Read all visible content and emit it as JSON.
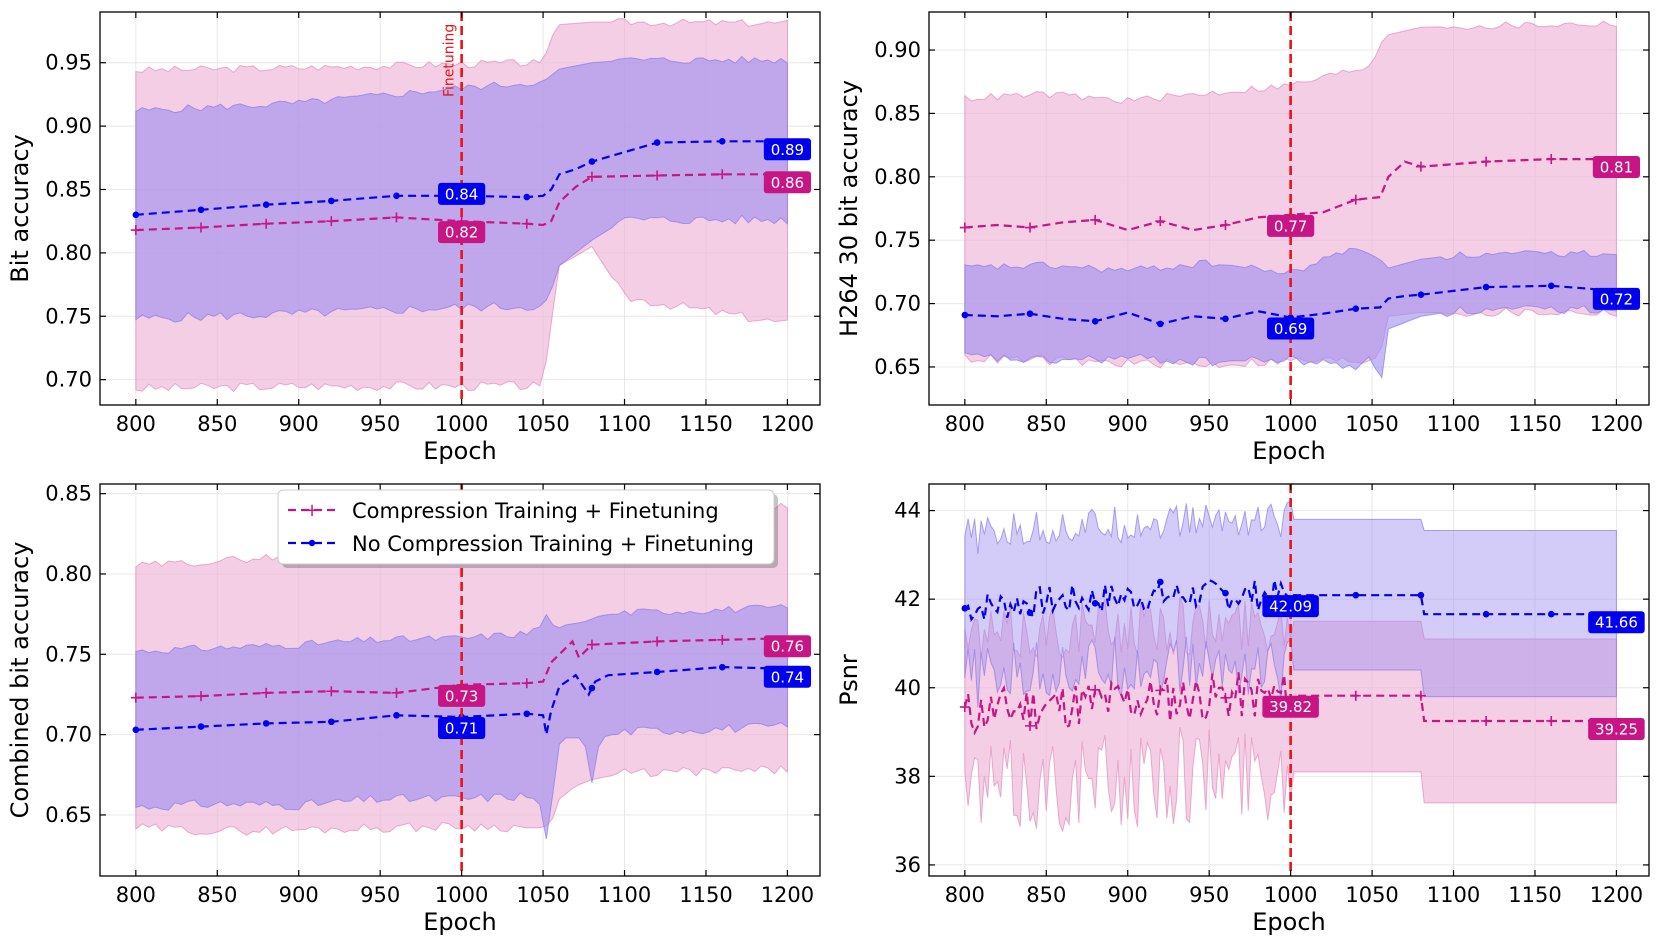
{
  "colors": {
    "compression": "#c71585",
    "nocompression": "#0000ee",
    "compression_fill": "#eeb4d6",
    "nocompression_fill": "#9f8ff0",
    "vline": "#ee1111"
  },
  "legend": {
    "entries": [
      "Compression Training + Finetuning",
      "No Compression Training + Finetuning"
    ]
  },
  "chart_data": [
    {
      "type": "line",
      "xlabel": "Epoch",
      "ylabel": "Bit accuracy",
      "xlim": [
        778,
        1220
      ],
      "ylim": [
        0.68,
        0.99
      ],
      "xticks": [
        800,
        850,
        900,
        950,
        1000,
        1050,
        1100,
        1150,
        1200
      ],
      "yticks": [
        0.7,
        0.75,
        0.8,
        0.85,
        0.9,
        0.95
      ],
      "ytick_labels": [
        "0.70",
        "0.75",
        "0.80",
        "0.85",
        "0.90",
        "0.95"
      ],
      "vline": {
        "x": 1000,
        "label": "Finetuning"
      },
      "series": [
        {
          "name": "Compression Training + Finetuning",
          "style": "comp",
          "x": [
            800,
            840,
            880,
            920,
            960,
            1000,
            1040,
            1050,
            1055,
            1060,
            1070,
            1080,
            1120,
            1160,
            1200
          ],
          "y": [
            0.818,
            0.82,
            0.823,
            0.825,
            0.828,
            0.825,
            0.823,
            0.822,
            0.825,
            0.84,
            0.852,
            0.86,
            0.861,
            0.862,
            0.862
          ],
          "markers_x": [
            800,
            840,
            880,
            920,
            960,
            1000,
            1040,
            1080,
            1120,
            1160
          ],
          "band_x": [
            800,
            900,
            1000,
            1050,
            1055,
            1060,
            1080,
            1100,
            1200
          ],
          "band_low": [
            0.693,
            0.695,
            0.695,
            0.695,
            0.745,
            0.79,
            0.805,
            0.765,
            0.744
          ],
          "band_high": [
            0.944,
            0.946,
            0.949,
            0.95,
            0.97,
            0.98,
            0.982,
            0.982,
            0.981
          ],
          "badge": "0.82",
          "badge_end": "0.86"
        },
        {
          "name": "No Compression Training + Finetuning",
          "style": "nocomp",
          "x": [
            800,
            840,
            880,
            920,
            960,
            1000,
            1040,
            1050,
            1055,
            1060,
            1070,
            1080,
            1120,
            1160,
            1200
          ],
          "y": [
            0.83,
            0.834,
            0.838,
            0.841,
            0.845,
            0.845,
            0.844,
            0.845,
            0.85,
            0.862,
            0.866,
            0.872,
            0.887,
            0.888,
            0.888
          ],
          "markers_x": [
            800,
            840,
            880,
            920,
            960,
            1000,
            1040,
            1080,
            1120,
            1160
          ],
          "band_x": [
            800,
            900,
            1000,
            1050,
            1055,
            1060,
            1080,
            1100,
            1200
          ],
          "band_low": [
            0.748,
            0.752,
            0.757,
            0.758,
            0.77,
            0.79,
            0.81,
            0.826,
            0.826
          ],
          "band_high": [
            0.912,
            0.918,
            0.93,
            0.935,
            0.94,
            0.945,
            0.95,
            0.952,
            0.952
          ],
          "badge": "0.84",
          "badge_end": "0.89"
        }
      ]
    },
    {
      "type": "line",
      "xlabel": "Epoch",
      "ylabel": "H264 30 bit accuracy",
      "xlim": [
        778,
        1220
      ],
      "ylim": [
        0.62,
        0.93
      ],
      "xticks": [
        800,
        850,
        900,
        950,
        1000,
        1050,
        1100,
        1150,
        1200
      ],
      "yticks": [
        0.65,
        0.7,
        0.75,
        0.8,
        0.85,
        0.9
      ],
      "ytick_labels": [
        "0.65",
        "0.70",
        "0.75",
        "0.80",
        "0.85",
        "0.90"
      ],
      "vline": {
        "x": 1000
      },
      "series": [
        {
          "name": "Compression Training + Finetuning",
          "style": "comp",
          "x": [
            800,
            820,
            840,
            860,
            880,
            900,
            920,
            940,
            960,
            980,
            1000,
            1020,
            1040,
            1055,
            1060,
            1070,
            1080,
            1120,
            1160,
            1200
          ],
          "y": [
            0.76,
            0.762,
            0.76,
            0.764,
            0.766,
            0.758,
            0.765,
            0.758,
            0.762,
            0.768,
            0.77,
            0.772,
            0.782,
            0.784,
            0.8,
            0.812,
            0.808,
            0.812,
            0.814,
            0.814
          ],
          "markers_x": [
            800,
            840,
            880,
            920,
            960,
            1000,
            1040,
            1080,
            1120,
            1160
          ],
          "band_x": [
            800,
            850,
            900,
            950,
            1000,
            1050,
            1055,
            1060,
            1080,
            1200
          ],
          "band_low": [
            0.657,
            0.655,
            0.653,
            0.652,
            0.655,
            0.655,
            0.66,
            0.69,
            0.693,
            0.693
          ],
          "band_high": [
            0.862,
            0.865,
            0.86,
            0.866,
            0.872,
            0.888,
            0.905,
            0.912,
            0.918,
            0.921
          ],
          "badge": "0.77",
          "badge_end": "0.81"
        },
        {
          "name": "No Compression Training + Finetuning",
          "style": "nocomp",
          "x": [
            800,
            820,
            840,
            860,
            880,
            900,
            920,
            940,
            960,
            980,
            1000,
            1020,
            1040,
            1055,
            1060,
            1070,
            1080,
            1120,
            1160,
            1200
          ],
          "y": [
            0.691,
            0.69,
            0.692,
            0.688,
            0.686,
            0.693,
            0.684,
            0.69,
            0.688,
            0.694,
            0.689,
            0.692,
            0.696,
            0.697,
            0.704,
            0.706,
            0.707,
            0.713,
            0.714,
            0.71
          ],
          "markers_x": [
            800,
            840,
            880,
            920,
            960,
            1000,
            1040,
            1080,
            1120,
            1160
          ],
          "band_x": [
            800,
            850,
            900,
            950,
            1000,
            1040,
            1050,
            1055,
            1060,
            1080,
            1100,
            1200
          ],
          "band_low": [
            0.658,
            0.655,
            0.657,
            0.654,
            0.656,
            0.65,
            0.66,
            0.632,
            0.68,
            0.69,
            0.694,
            0.696
          ],
          "band_high": [
            0.728,
            0.73,
            0.726,
            0.732,
            0.724,
            0.745,
            0.738,
            0.735,
            0.728,
            0.735,
            0.738,
            0.74
          ],
          "badge": "0.69",
          "badge_end": "0.72"
        }
      ]
    },
    {
      "type": "line",
      "xlabel": "Epoch",
      "ylabel": "Combined bit accuracy",
      "xlim": [
        778,
        1220
      ],
      "ylim": [
        0.612,
        0.856
      ],
      "xticks": [
        800,
        850,
        900,
        950,
        1000,
        1050,
        1100,
        1150,
        1200
      ],
      "yticks": [
        0.65,
        0.7,
        0.75,
        0.8,
        0.85
      ],
      "ytick_labels": [
        "0.65",
        "0.70",
        "0.75",
        "0.80",
        "0.85"
      ],
      "vline": {
        "x": 1000
      },
      "series": [
        {
          "name": "Compression Training + Finetuning",
          "style": "comp",
          "x": [
            800,
            840,
            880,
            920,
            960,
            1000,
            1040,
            1050,
            1055,
            1060,
            1068,
            1072,
            1080,
            1120,
            1160,
            1200
          ],
          "y": [
            0.723,
            0.724,
            0.726,
            0.727,
            0.726,
            0.731,
            0.732,
            0.733,
            0.745,
            0.75,
            0.758,
            0.748,
            0.756,
            0.758,
            0.759,
            0.76
          ],
          "markers_x": [
            800,
            840,
            880,
            920,
            960,
            1000,
            1040,
            1080,
            1120,
            1160
          ],
          "band_x": [
            800,
            850,
            900,
            950,
            1000,
            1050,
            1055,
            1060,
            1070,
            1080,
            1100,
            1200
          ],
          "band_low": [
            0.642,
            0.64,
            0.641,
            0.642,
            0.643,
            0.642,
            0.645,
            0.66,
            0.668,
            0.672,
            0.676,
            0.678
          ],
          "band_high": [
            0.805,
            0.808,
            0.812,
            0.82,
            0.825,
            0.824,
            0.83,
            0.836,
            0.84,
            0.841,
            0.842,
            0.842
          ],
          "badge": "0.73",
          "badge_end": "0.76"
        },
        {
          "name": "No Compression Training + Finetuning",
          "style": "nocomp",
          "x": [
            800,
            840,
            880,
            920,
            960,
            1000,
            1040,
            1050,
            1052,
            1055,
            1060,
            1070,
            1078,
            1082,
            1090,
            1120,
            1160,
            1200
          ],
          "y": [
            0.703,
            0.705,
            0.707,
            0.708,
            0.712,
            0.711,
            0.713,
            0.712,
            0.7,
            0.715,
            0.73,
            0.737,
            0.725,
            0.733,
            0.737,
            0.739,
            0.742,
            0.741
          ],
          "markers_x": [
            800,
            840,
            880,
            920,
            960,
            1000,
            1040,
            1080,
            1120,
            1160
          ],
          "band_x": [
            800,
            850,
            900,
            950,
            1000,
            1040,
            1050,
            1053,
            1055,
            1058,
            1062,
            1075,
            1080,
            1085,
            1100,
            1200
          ],
          "band_low": [
            0.655,
            0.657,
            0.656,
            0.66,
            0.66,
            0.662,
            0.655,
            0.625,
            0.65,
            0.69,
            0.698,
            0.698,
            0.67,
            0.698,
            0.702,
            0.705
          ],
          "band_high": [
            0.752,
            0.754,
            0.756,
            0.759,
            0.76,
            0.763,
            0.768,
            0.778,
            0.77,
            0.765,
            0.768,
            0.77,
            0.772,
            0.774,
            0.776,
            0.779
          ],
          "badge": "0.71",
          "badge_end": "0.74"
        }
      ]
    },
    {
      "type": "line",
      "xlabel": "Epoch",
      "ylabel": "Psnr",
      "xlim": [
        778,
        1220
      ],
      "ylim": [
        35.75,
        44.6
      ],
      "xticks": [
        800,
        850,
        900,
        950,
        1000,
        1050,
        1100,
        1150,
        1200
      ],
      "yticks": [
        36,
        38,
        40,
        42,
        44
      ],
      "ytick_labels": [
        "36",
        "38",
        "40",
        "42",
        "44"
      ],
      "vline": {
        "x": 1000
      },
      "series": [
        {
          "name": "Compression Training + Finetuning",
          "style": "comp",
          "noisy": true,
          "noise_seed": 11,
          "noise_until": 1000,
          "noise_amp": 0.55,
          "band_noise_amp": 1.1,
          "x": [
            800,
            850,
            900,
            950,
            1000,
            1001,
            1080,
            1081,
            1200
          ],
          "y": [
            39.4,
            39.6,
            39.7,
            39.8,
            39.82,
            39.82,
            39.82,
            39.25,
            39.25
          ],
          "markers_x": [
            800,
            840,
            880,
            920,
            960,
            1040,
            1080,
            1120,
            1160
          ],
          "band_x": [
            800,
            850,
            900,
            950,
            1000,
            1001,
            1080,
            1081,
            1200
          ],
          "band_low": [
            37.7,
            37.8,
            37.9,
            38.1,
            38.1,
            38.1,
            38.1,
            37.4,
            37.4
          ],
          "band_high": [
            41.1,
            41.3,
            41.4,
            41.4,
            41.5,
            41.5,
            41.5,
            41.1,
            41.1
          ],
          "badge": "39.82",
          "badge_end": "39.25",
          "badge_dx": 0
        },
        {
          "name": "No Compression Training + Finetuning",
          "style": "nocomp",
          "noisy": true,
          "noise_seed": 7,
          "noise_until": 1000,
          "noise_amp": 0.35,
          "band_noise_amp": 0.7,
          "x": [
            800,
            850,
            900,
            950,
            1000,
            1001,
            1080,
            1081,
            1200
          ],
          "y": [
            41.8,
            41.95,
            42.05,
            42.1,
            42.09,
            42.09,
            42.09,
            41.66,
            41.66
          ],
          "markers_x": [
            800,
            840,
            880,
            920,
            960,
            1040,
            1080,
            1120,
            1160
          ],
          "band_x": [
            800,
            850,
            900,
            950,
            1000,
            1001,
            1080,
            1081,
            1200
          ],
          "band_low": [
            40.2,
            40.4,
            40.5,
            40.5,
            40.4,
            40.4,
            40.4,
            39.8,
            39.8
          ],
          "band_high": [
            43.4,
            43.6,
            43.7,
            43.8,
            43.8,
            43.8,
            43.8,
            43.55,
            43.55
          ],
          "badge": "42.09",
          "badge_end": "41.66"
        }
      ]
    }
  ]
}
